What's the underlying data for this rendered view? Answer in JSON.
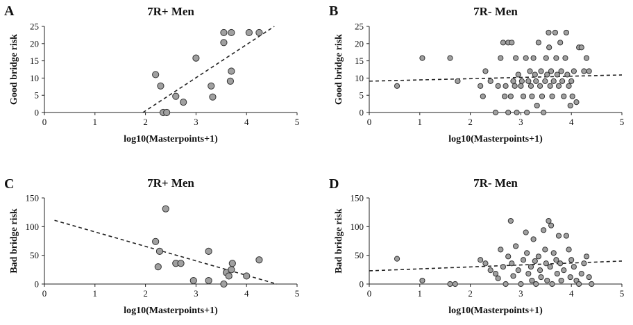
{
  "figure": {
    "colors": {
      "point_fill": "#a0a0a0",
      "point_stroke": "#333333",
      "axis": "#222222",
      "trend": "#222222"
    }
  },
  "chart_data": [
    {
      "panel": "A",
      "type": "scatter",
      "title": "7R+ Men",
      "xlabel": "log10(Masterpoints+1)",
      "ylabel": "Good bridge risk",
      "xlim": [
        0,
        5
      ],
      "ylim": [
        0,
        25
      ],
      "xticks": [
        "0",
        "1",
        "2",
        "3",
        "4",
        "5"
      ],
      "yticks": [
        "0",
        "5",
        "10",
        "15",
        "20",
        "25"
      ],
      "grid": false,
      "points": [
        [
          2.2,
          11
        ],
        [
          2.3,
          7.7
        ],
        [
          2.35,
          0
        ],
        [
          2.42,
          0
        ],
        [
          2.6,
          4.7
        ],
        [
          2.75,
          3
        ],
        [
          3.0,
          15.8
        ],
        [
          3.3,
          7.7
        ],
        [
          3.33,
          4.5
        ],
        [
          3.55,
          23.2
        ],
        [
          3.55,
          20.3
        ],
        [
          3.7,
          23.2
        ],
        [
          3.7,
          12
        ],
        [
          3.68,
          9.1
        ],
        [
          4.05,
          23.2
        ],
        [
          4.25,
          23.2
        ]
      ],
      "trend": [
        [
          1.95,
          0
        ],
        [
          4.55,
          25
        ]
      ]
    },
    {
      "panel": "B",
      "type": "scatter",
      "title": "7R- Men",
      "xlabel": "log10(Masterpoints+1)",
      "ylabel": "Good bridge risk",
      "xlim": [
        0,
        5
      ],
      "ylim": [
        0,
        25
      ],
      "xticks": [
        "0",
        "1",
        "2",
        "3",
        "4",
        "5"
      ],
      "yticks": [
        "0",
        "5",
        "10",
        "15",
        "20",
        "25"
      ],
      "grid": false,
      "points": [
        [
          0.55,
          7.7
        ],
        [
          1.05,
          15.8
        ],
        [
          1.6,
          15.8
        ],
        [
          1.75,
          9.1
        ],
        [
          2.2,
          7.7
        ],
        [
          2.25,
          4.7
        ],
        [
          2.3,
          12
        ],
        [
          2.4,
          9.1
        ],
        [
          2.5,
          0
        ],
        [
          2.55,
          7.7
        ],
        [
          2.6,
          15.8
        ],
        [
          2.65,
          20.3
        ],
        [
          2.68,
          4.7
        ],
        [
          2.7,
          7.7
        ],
        [
          2.75,
          20.3
        ],
        [
          2.75,
          0
        ],
        [
          2.8,
          4.7
        ],
        [
          2.82,
          20.3
        ],
        [
          2.85,
          9.1
        ],
        [
          2.88,
          7.7
        ],
        [
          2.9,
          15.8
        ],
        [
          2.92,
          0
        ],
        [
          2.95,
          11
        ],
        [
          3.0,
          7.7
        ],
        [
          3.02,
          9.1
        ],
        [
          3.05,
          4.7
        ],
        [
          3.1,
          15.8
        ],
        [
          3.12,
          0
        ],
        [
          3.15,
          9.1
        ],
        [
          3.18,
          12
        ],
        [
          3.2,
          7.7
        ],
        [
          3.22,
          4.7
        ],
        [
          3.25,
          15.8
        ],
        [
          3.28,
          11
        ],
        [
          3.3,
          9.1
        ],
        [
          3.32,
          2
        ],
        [
          3.35,
          20.3
        ],
        [
          3.38,
          7.7
        ],
        [
          3.4,
          12
        ],
        [
          3.42,
          4.7
        ],
        [
          3.45,
          0
        ],
        [
          3.48,
          9.1
        ],
        [
          3.5,
          15.8
        ],
        [
          3.52,
          11
        ],
        [
          3.55,
          23.2
        ],
        [
          3.56,
          18.9
        ],
        [
          3.58,
          7.7
        ],
        [
          3.6,
          12
        ],
        [
          3.62,
          4.7
        ],
        [
          3.65,
          9.1
        ],
        [
          3.68,
          23.2
        ],
        [
          3.7,
          15.8
        ],
        [
          3.72,
          11
        ],
        [
          3.75,
          7.7
        ],
        [
          3.78,
          20.3
        ],
        [
          3.8,
          12
        ],
        [
          3.82,
          9.1
        ],
        [
          3.85,
          4.7
        ],
        [
          3.88,
          15.8
        ],
        [
          3.9,
          23.2
        ],
        [
          3.92,
          11
        ],
        [
          3.95,
          7.7
        ],
        [
          3.98,
          2
        ],
        [
          4.0,
          9.1
        ],
        [
          4.02,
          4.7
        ],
        [
          4.05,
          12
        ],
        [
          4.1,
          3
        ],
        [
          4.15,
          18.9
        ],
        [
          4.2,
          18.9
        ],
        [
          4.25,
          12
        ],
        [
          4.3,
          15.8
        ],
        [
          4.35,
          12
        ]
      ],
      "trend": [
        [
          0,
          9.1
        ],
        [
          5,
          10.9
        ]
      ]
    },
    {
      "panel": "C",
      "type": "scatter",
      "title": "7R+ Men",
      "xlabel": "log10(Masterpoints+1)",
      "ylabel": "Bad bridge risk",
      "xlim": [
        0,
        5
      ],
      "ylim": [
        0,
        150
      ],
      "xticks": [
        "0",
        "1",
        "2",
        "3",
        "4",
        "5"
      ],
      "yticks": [
        "0",
        "50",
        "100",
        "150"
      ],
      "grid": false,
      "points": [
        [
          2.2,
          74
        ],
        [
          2.28,
          57
        ],
        [
          2.25,
          30
        ],
        [
          2.4,
          131
        ],
        [
          2.6,
          36
        ],
        [
          2.7,
          36
        ],
        [
          2.95,
          6
        ],
        [
          3.25,
          57
        ],
        [
          3.25,
          6
        ],
        [
          3.55,
          0
        ],
        [
          3.6,
          20
        ],
        [
          3.65,
          14
        ],
        [
          3.7,
          25
        ],
        [
          3.72,
          36
        ],
        [
          4.0,
          14
        ],
        [
          4.25,
          42
        ]
      ],
      "trend": [
        [
          0.2,
          111
        ],
        [
          4.6,
          0
        ]
      ]
    },
    {
      "panel": "D",
      "type": "scatter",
      "title": "7R- Men",
      "xlabel": "log10(Masterpoints+1)",
      "ylabel": "Bad bridge risk",
      "xlim": [
        0,
        5
      ],
      "ylim": [
        0,
        150
      ],
      "xticks": [
        "0",
        "1",
        "2",
        "3",
        "4",
        "5"
      ],
      "yticks": [
        "0",
        "50",
        "100",
        "150"
      ],
      "grid": false,
      "points": [
        [
          0.55,
          44
        ],
        [
          1.05,
          6
        ],
        [
          1.6,
          0
        ],
        [
          1.7,
          0
        ],
        [
          2.2,
          42
        ],
        [
          2.3,
          36
        ],
        [
          2.4,
          24
        ],
        [
          2.5,
          18
        ],
        [
          2.55,
          10
        ],
        [
          2.6,
          60
        ],
        [
          2.65,
          30
        ],
        [
          2.7,
          0
        ],
        [
          2.75,
          48
        ],
        [
          2.8,
          110
        ],
        [
          2.82,
          36
        ],
        [
          2.85,
          14
        ],
        [
          2.9,
          66
        ],
        [
          2.95,
          24
        ],
        [
          3.0,
          0
        ],
        [
          3.05,
          42
        ],
        [
          3.1,
          90
        ],
        [
          3.12,
          54
        ],
        [
          3.15,
          18
        ],
        [
          3.2,
          30
        ],
        [
          3.22,
          6
        ],
        [
          3.25,
          78
        ],
        [
          3.28,
          40
        ],
        [
          3.3,
          0
        ],
        [
          3.35,
          48
        ],
        [
          3.38,
          24
        ],
        [
          3.4,
          12
        ],
        [
          3.45,
          94
        ],
        [
          3.48,
          60
        ],
        [
          3.5,
          36
        ],
        [
          3.52,
          6
        ],
        [
          3.55,
          110
        ],
        [
          3.58,
          30
        ],
        [
          3.6,
          102
        ],
        [
          3.62,
          0
        ],
        [
          3.65,
          54
        ],
        [
          3.7,
          42
        ],
        [
          3.72,
          18
        ],
        [
          3.75,
          84
        ],
        [
          3.78,
          36
        ],
        [
          3.8,
          6
        ],
        [
          3.85,
          24
        ],
        [
          3.9,
          84
        ],
        [
          3.95,
          60
        ],
        [
          3.98,
          12
        ],
        [
          4.0,
          42
        ],
        [
          4.05,
          30
        ],
        [
          4.1,
          6
        ],
        [
          4.15,
          0
        ],
        [
          4.2,
          18
        ],
        [
          4.25,
          36
        ],
        [
          4.3,
          48
        ],
        [
          4.35,
          12
        ],
        [
          4.4,
          0
        ]
      ],
      "trend": [
        [
          0,
          23
        ],
        [
          5,
          40
        ]
      ]
    }
  ]
}
